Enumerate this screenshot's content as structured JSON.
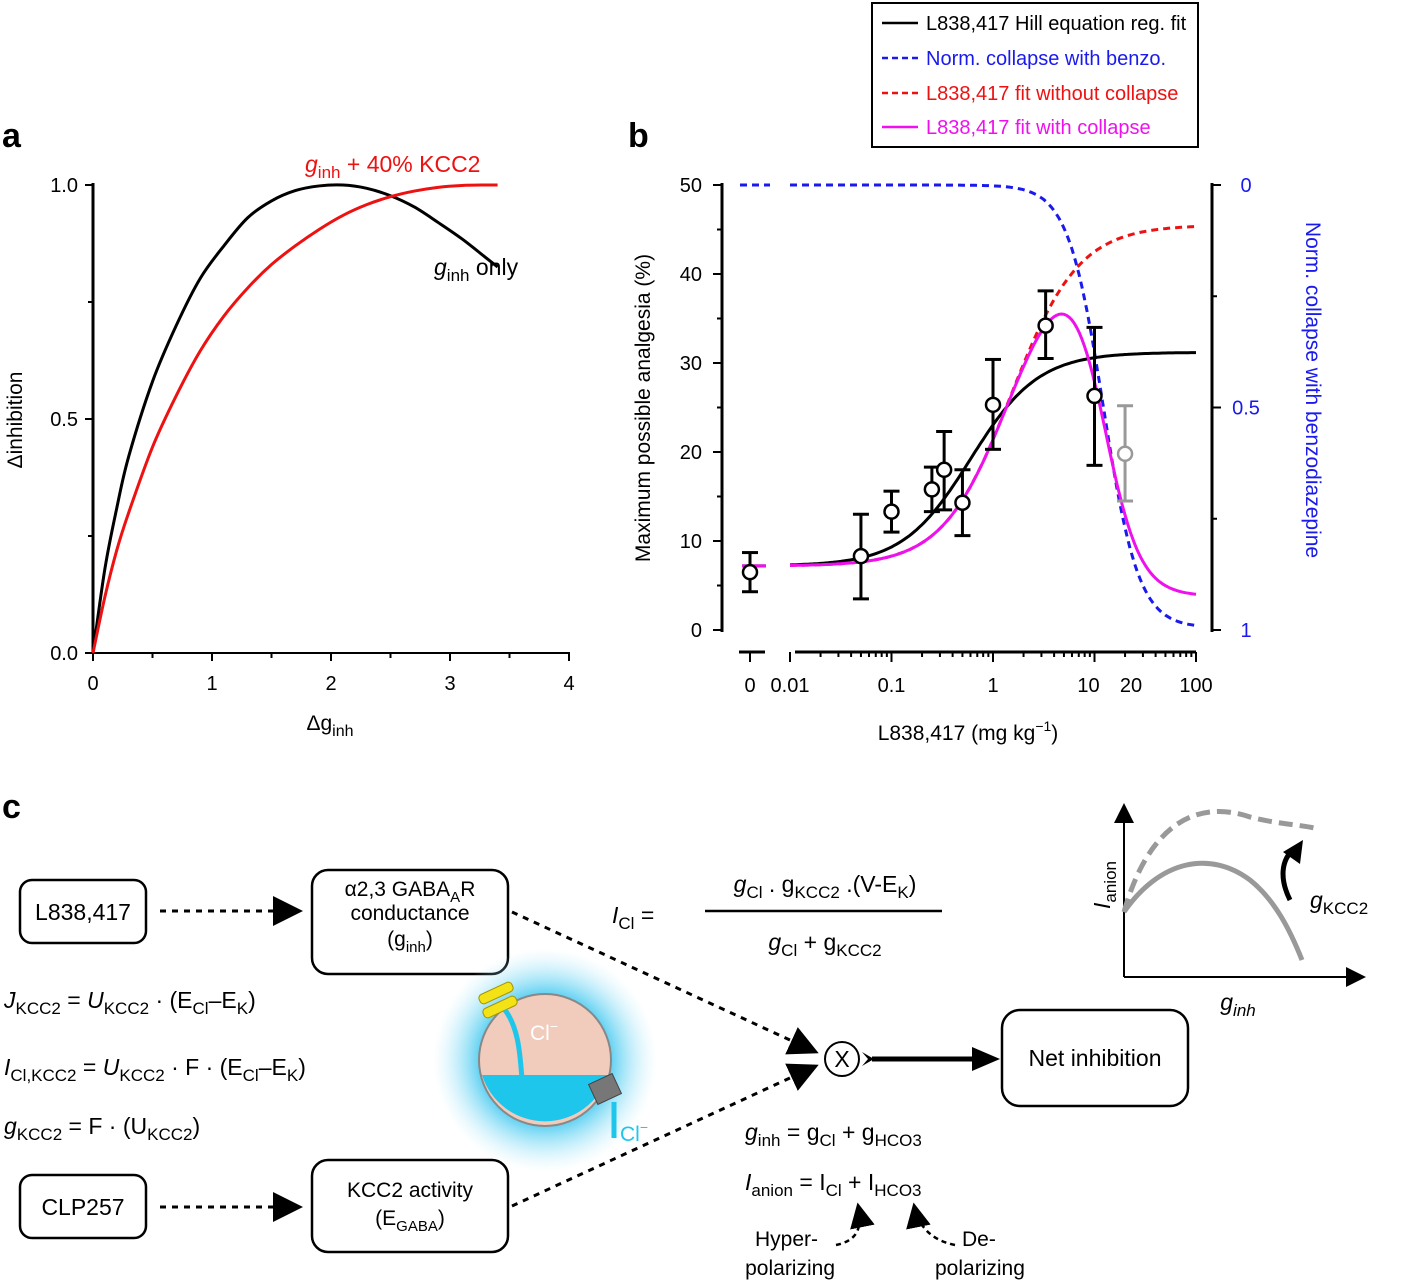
{
  "panels": {
    "a": "a",
    "b": "b",
    "c": "c"
  },
  "chart_data": [
    {
      "type": "line",
      "panel": "a",
      "xlabel": "Δg",
      "xlabel_sub": "inh",
      "ylabel": "Δinhibition",
      "xlim": [
        0,
        4
      ],
      "ylim": [
        0,
        1
      ],
      "xticks": [
        "0",
        "1",
        "2",
        "3",
        "4"
      ],
      "yticks": [
        "0.0",
        "0.5",
        "1.0"
      ],
      "series": [
        {
          "name": "g_inh only",
          "label_main": "g",
          "label_sub": "inh",
          "label_rest": " only",
          "color": "#000000",
          "x": [
            0,
            0.1,
            0.2,
            0.3,
            0.5,
            0.7,
            0.9,
            1.1,
            1.3,
            1.5,
            1.7,
            1.9,
            2.1,
            2.3,
            2.5,
            2.7,
            2.9,
            3.1,
            3.3,
            3.4
          ],
          "y": [
            0,
            0.18,
            0.31,
            0.42,
            0.58,
            0.7,
            0.8,
            0.87,
            0.93,
            0.966,
            0.988,
            0.998,
            1.0,
            0.993,
            0.977,
            0.953,
            0.92,
            0.885,
            0.845,
            0.825
          ]
        },
        {
          "name": "g_inh + 40% KCC2",
          "label_main": "g",
          "label_sub": "inh",
          "label_rest": " + 40% KCC2",
          "color": "#ee1111",
          "x": [
            0,
            0.1,
            0.2,
            0.3,
            0.5,
            0.7,
            0.9,
            1.1,
            1.3,
            1.5,
            1.7,
            1.9,
            2.1,
            2.3,
            2.5,
            2.7,
            2.9,
            3.1,
            3.3,
            3.4
          ],
          "y": [
            0,
            0.12,
            0.22,
            0.3,
            0.44,
            0.55,
            0.645,
            0.72,
            0.78,
            0.83,
            0.87,
            0.905,
            0.935,
            0.958,
            0.975,
            0.987,
            0.995,
            0.999,
            1.0,
            1.0
          ]
        }
      ]
    },
    {
      "type": "line",
      "panel": "b",
      "xlabel": "L838,417 (mg kg",
      "xlabel_sup": "−1",
      "xlabel_end": ")",
      "ylabel": "Maximum possible analgesia (%)",
      "ylabel_right": "Norm. collapse with benzodiazepine",
      "xscale": "log",
      "xlim": [
        0.01,
        100
      ],
      "ylim": [
        0,
        50
      ],
      "ylim_right": [
        1,
        0
      ],
      "xticks": [
        "0",
        "0.01",
        "0.1",
        "1",
        "10",
        "20",
        "100"
      ],
      "yticks": [
        "0",
        "10",
        "20",
        "30",
        "40",
        "50"
      ],
      "yticks_right": [
        "0",
        "0.5",
        "1"
      ],
      "legend": [
        {
          "label": "L838,417 Hill equation reg. fit",
          "color": "#000000",
          "style": "solid"
        },
        {
          "label": "Norm. collapse with benzo.",
          "color": "#1a1aee",
          "style": "dashed"
        },
        {
          "label": "L838,417 fit without collapse",
          "color": "#ee1111",
          "style": "dashed"
        },
        {
          "label": "L838,417 fit with collapse",
          "color": "#ee11ee",
          "style": "solid"
        }
      ],
      "points": [
        {
          "dose": 0,
          "y": 6.5,
          "err_low": 4.3,
          "err_high": 8.7,
          "color": "#000000"
        },
        {
          "dose": 0.05,
          "y": 8.3,
          "err_low": 3.5,
          "err_high": 13.0,
          "color": "#000000"
        },
        {
          "dose": 0.1,
          "y": 13.3,
          "err_low": 11.0,
          "err_high": 15.6,
          "color": "#000000"
        },
        {
          "dose": 0.25,
          "y": 15.8,
          "err_low": 13.3,
          "err_high": 18.3,
          "color": "#000000"
        },
        {
          "dose": 0.33,
          "y": 18.0,
          "err_low": 13.5,
          "err_high": 22.3,
          "color": "#000000"
        },
        {
          "dose": 0.5,
          "y": 14.3,
          "err_low": 10.6,
          "err_high": 18.0,
          "color": "#000000"
        },
        {
          "dose": 1,
          "y": 25.3,
          "err_low": 20.3,
          "err_high": 30.4,
          "color": "#000000"
        },
        {
          "dose": 3.3,
          "y": 34.2,
          "err_low": 30.5,
          "err_high": 38.1,
          "color": "#000000"
        },
        {
          "dose": 10,
          "y": 26.3,
          "err_low": 18.5,
          "err_high": 34.0,
          "color": "#000000"
        },
        {
          "dose": 20,
          "y": 19.8,
          "err_low": 14.5,
          "err_high": 25.2,
          "color": "#999999"
        }
      ],
      "curves": {
        "hill_fit": {
          "baseline": 7.2,
          "top": 31.2,
          "ec50": 0.6,
          "n": 1.3,
          "color": "#000000"
        },
        "fit_without_collapse": {
          "baseline": 7.2,
          "top": 45.5,
          "ec50": 1.5,
          "n": 1.3,
          "color": "#ee1111"
        },
        "collapse": {
          "ic50": 12.2,
          "n": 2.5,
          "color": "#1a1aee"
        },
        "fit_with_collapse": {
          "color": "#ee11ee"
        }
      }
    }
  ],
  "diagram": {
    "box_l838": "L838,417",
    "box_gaba_line1": "α2,3 GABA",
    "box_gaba_sub": "A",
    "box_gaba_end": "R",
    "box_gaba_line2": "conductance",
    "box_gaba_line3": "(g",
    "box_gaba_line3_sub": "inh",
    "box_gaba_line3_end": ")",
    "box_clp": "CLP257",
    "box_kcc2_line1": "KCC2 activity",
    "box_kcc2_line2": "(E",
    "box_kcc2_line2_sub": "GABA",
    "box_kcc2_line2_end": ")",
    "box_net": "Net inhibition",
    "multiply": "X",
    "chloride": "Cl",
    "chloride_sup": "−",
    "inset_ylabel": "I",
    "inset_ylabel_sub": "anion",
    "inset_xlabel": "g",
    "inset_xlabel_sub": "inh",
    "inset_arrow_label": "g",
    "inset_arrow_sub": "KCC2",
    "hyper_1": "Hyper-",
    "hyper_2": "polarizing",
    "depol_1": "De-",
    "depol_2": "polarizing",
    "eq_J": {
      "lhs": "J",
      "lhs_sub": "KCC2",
      "eq": " = ",
      "u": "U",
      "u_sub": "KCC2",
      "dot": " · (E",
      "ecl_sub": "Cl",
      "dash": "–E",
      "ek_sub": "K",
      "end": ")"
    },
    "eq_I": {
      "lhs": "I",
      "lhs_sub": "Cl,KCC2",
      "eq": " = ",
      "u": "U",
      "u_sub": "KCC2",
      "dot": " · F · (E",
      "ecl_sub": "Cl",
      "dash": "–E",
      "ek_sub": "K",
      "end": ")"
    },
    "eq_g": {
      "lhs": "g",
      "lhs_sub": "KCC2",
      "eq": " = F · (U",
      "u_sub": "KCC2",
      "end": ")"
    },
    "eq_ICl": {
      "lhs": "I",
      "lhs_sub": "Cl",
      "eq": " =",
      "num_a": "g",
      "num_a_sub": "Cl",
      "num_dot": " . g",
      "num_b_sub": "KCC2",
      "num_rest": " .(V-E",
      "num_k_sub": "K",
      "num_end": ")",
      "den_a": "g",
      "den_a_sub": "Cl",
      "den_plus": " + g",
      "den_b_sub": "KCC2"
    },
    "eq_ginh": {
      "lhs": "g",
      "lhs_sub": "inh",
      "eq": " = g",
      "a_sub": "Cl",
      "plus": " + g",
      "b_sub": "HCO3"
    },
    "eq_Ianion": {
      "lhs": "I",
      "lhs_sub": "anion",
      "eq": " = I",
      "a_sub": "Cl",
      "plus": " + I",
      "b_sub": "HCO3"
    }
  }
}
